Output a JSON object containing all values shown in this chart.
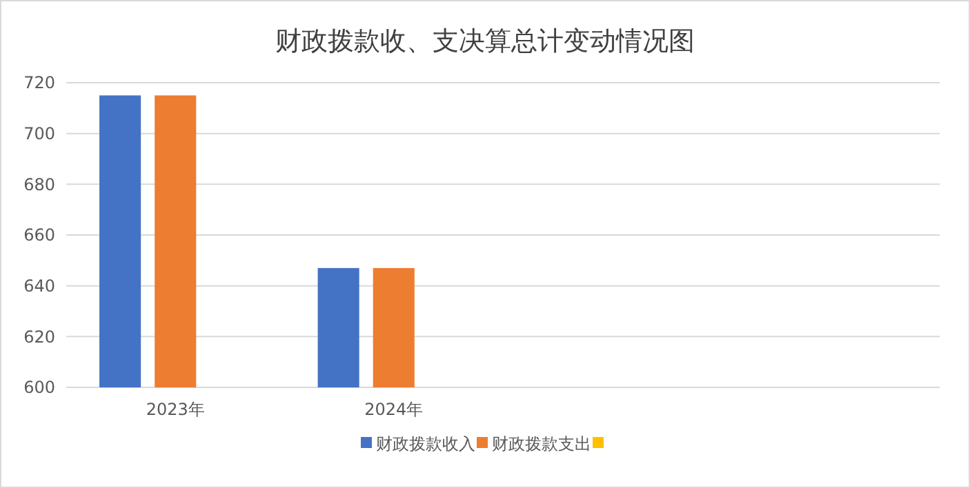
{
  "chart_data": {
    "type": "bar",
    "title": "财政拨款收、支决算总计变动情况图",
    "categories": [
      "2023年",
      "2024年",
      null,
      null
    ],
    "series": [
      {
        "name": "财政拨款收入",
        "color": "#4472c4",
        "values": [
          715,
          647,
          null,
          null
        ]
      },
      {
        "name": "财政拨款支出",
        "color": "#ed7d31",
        "values": [
          715,
          647,
          null,
          null
        ]
      },
      {
        "color": "#ffc000",
        "values": [
          null,
          null,
          null,
          null
        ]
      }
    ],
    "ylim": [
      600,
      720
    ],
    "yticks": [
      600,
      620,
      640,
      660,
      680,
      700,
      720
    ],
    "grid": "y",
    "legend": "bottom"
  }
}
